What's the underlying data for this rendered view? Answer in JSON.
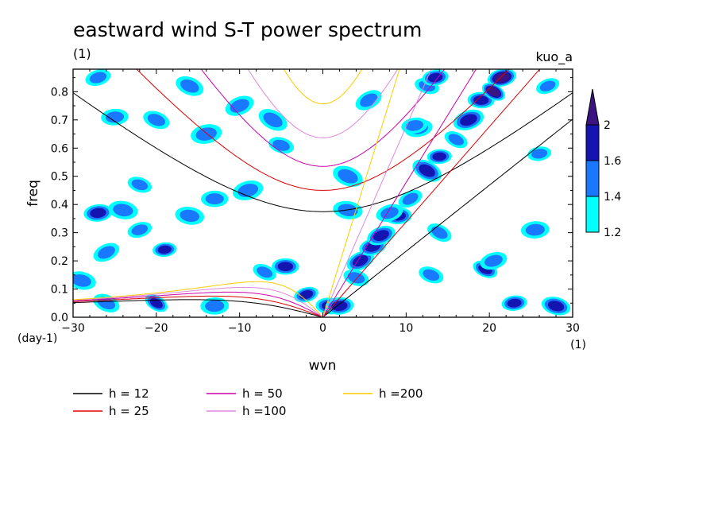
{
  "chart_data": {
    "type": "heatmap",
    "title": "eastward wind S-T power spectrum",
    "subtitle": "(1)",
    "label_right": "kuo_a",
    "xlabel": "wvn",
    "ylabel": "freq",
    "x_unit": "(1)",
    "y_unit": "(day-1)",
    "xlim": [
      -30,
      30
    ],
    "ylim": [
      0,
      0.88
    ],
    "x_ticks": [
      -30,
      -20,
      -10,
      0,
      10,
      20,
      30
    ],
    "x_tick_labels": [
      "-30",
      "-20",
      "-10",
      "0",
      "10",
      "20",
      "30"
    ],
    "y_ticks": [
      0,
      0.1,
      0.2,
      0.3,
      0.4,
      0.5,
      0.6,
      0.7,
      0.8
    ],
    "y_tick_labels": [
      "0.0",
      "0.1",
      "0.2",
      "0.3",
      "0.4",
      "0.5",
      "0.6",
      "0.7",
      "0.8"
    ],
    "colorbar": {
      "levels": [
        1.2,
        1.4,
        1.6,
        2
      ],
      "level_labels": [
        "1.2",
        "1.4",
        "1.6",
        "2"
      ],
      "colors": [
        "#00ffff",
        "#1a78ff",
        "#1414b0",
        "#3c1482"
      ]
    },
    "dispersion_curves": [
      {
        "name": "h = 12",
        "h": 12,
        "color": "#000000"
      },
      {
        "name": "h = 25",
        "h": 25,
        "color": "#dd0000"
      },
      {
        "name": "h = 50",
        "h": 50,
        "color": "#cc00aa"
      },
      {
        "name": "h =100",
        "h": 100,
        "color": "#dd88dd"
      },
      {
        "name": "h =200",
        "h": 200,
        "color": "#ffcc00"
      }
    ],
    "spectral_features": [
      {
        "x": 0.8,
        "y": 0.04,
        "level": 3
      },
      {
        "x": -2,
        "y": 0.08,
        "level": 3
      },
      {
        "x": -4.5,
        "y": 0.18,
        "level": 3
      },
      {
        "x": -7,
        "y": 0.16,
        "level": 2
      },
      {
        "x": 2,
        "y": 0.04,
        "level": 3
      },
      {
        "x": 4,
        "y": 0.14,
        "level": 2
      },
      {
        "x": 4.5,
        "y": 0.2,
        "level": 3
      },
      {
        "x": 6,
        "y": 0.25,
        "level": 3
      },
      {
        "x": 7,
        "y": 0.29,
        "level": 3
      },
      {
        "x": 9,
        "y": 0.36,
        "level": 3
      },
      {
        "x": 10.5,
        "y": 0.42,
        "level": 2
      },
      {
        "x": 12.5,
        "y": 0.52,
        "level": 3
      },
      {
        "x": 14,
        "y": 0.57,
        "level": 3
      },
      {
        "x": 17.5,
        "y": 0.7,
        "level": 3
      },
      {
        "x": 19,
        "y": 0.77,
        "level": 3
      },
      {
        "x": 21.5,
        "y": 0.85,
        "level": 4
      },
      {
        "x": 20.5,
        "y": 0.8,
        "level": 4
      },
      {
        "x": 8,
        "y": 0.37,
        "level": 2
      },
      {
        "x": 11.5,
        "y": 0.67,
        "level": 2
      },
      {
        "x": 12.5,
        "y": 0.82,
        "level": 2
      },
      {
        "x": 13.5,
        "y": 0.85,
        "level": 3
      },
      {
        "x": 16,
        "y": 0.63,
        "level": 2
      },
      {
        "x": 19.5,
        "y": 0.17,
        "level": 3
      },
      {
        "x": 20.5,
        "y": 0.2,
        "level": 2
      },
      {
        "x": -27,
        "y": 0.37,
        "level": 3
      },
      {
        "x": -24,
        "y": 0.38,
        "level": 2
      },
      {
        "x": -22,
        "y": 0.31,
        "level": 2
      },
      {
        "x": -26,
        "y": 0.23,
        "level": 2
      },
      {
        "x": -19,
        "y": 0.24,
        "level": 3
      },
      {
        "x": -16,
        "y": 0.36,
        "level": 2
      },
      {
        "x": -14,
        "y": 0.65,
        "level": 2
      },
      {
        "x": -13,
        "y": 0.42,
        "level": 2
      },
      {
        "x": -20,
        "y": 0.7,
        "level": 2
      },
      {
        "x": -25,
        "y": 0.71,
        "level": 2
      },
      {
        "x": -27,
        "y": 0.85,
        "level": 2
      },
      {
        "x": -10,
        "y": 0.75,
        "level": 2
      },
      {
        "x": -5,
        "y": 0.61,
        "level": 2
      },
      {
        "x": -6,
        "y": 0.7,
        "level": 2
      },
      {
        "x": 3,
        "y": 0.5,
        "level": 2
      },
      {
        "x": 3,
        "y": 0.38,
        "level": 2
      },
      {
        "x": 5.5,
        "y": 0.77,
        "level": 2
      },
      {
        "x": 11,
        "y": 0.68,
        "level": 2
      },
      {
        "x": 23,
        "y": 0.05,
        "level": 3
      },
      {
        "x": 28,
        "y": 0.04,
        "level": 3
      },
      {
        "x": 14,
        "y": 0.3,
        "level": 2
      },
      {
        "x": 26,
        "y": 0.58,
        "level": 2
      },
      {
        "x": 25.5,
        "y": 0.31,
        "level": 2
      },
      {
        "x": -20,
        "y": 0.05,
        "level": 3
      },
      {
        "x": -26,
        "y": 0.05,
        "level": 2
      },
      {
        "x": -13,
        "y": 0.04,
        "level": 2
      },
      {
        "x": -22,
        "y": 0.47,
        "level": 2
      },
      {
        "x": -9,
        "y": 0.45,
        "level": 2
      },
      {
        "x": 27,
        "y": 0.82,
        "level": 2
      },
      {
        "x": -29,
        "y": 0.13,
        "level": 2
      },
      {
        "x": -16,
        "y": 0.82,
        "level": 2
      },
      {
        "x": 13,
        "y": 0.15,
        "level": 2
      }
    ]
  }
}
